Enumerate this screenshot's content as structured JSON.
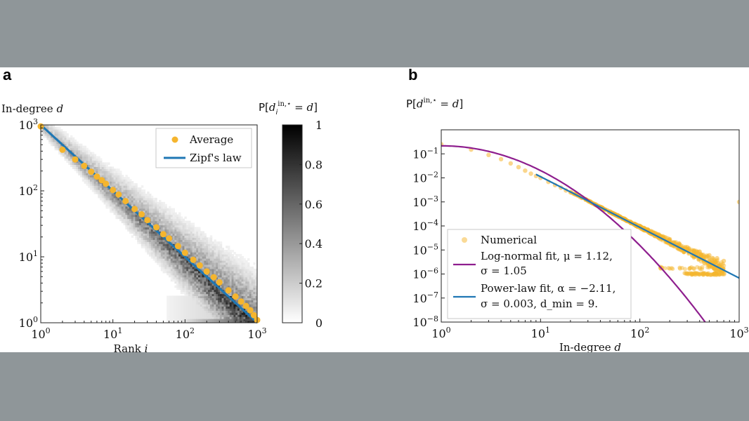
{
  "chart_data": [
    {
      "panel": "a",
      "type": "heatmap",
      "ylabel_text": "In-degree",
      "ylabel_var": "d",
      "xlabel_text": "Rank",
      "xlabel_var": "i",
      "xscale": "log",
      "yscale": "log",
      "xlim": [
        1,
        1000
      ],
      "ylim": [
        1,
        1000
      ],
      "x_ticks": [
        {
          "base": "10",
          "exp": "0"
        },
        {
          "base": "10",
          "exp": "1"
        },
        {
          "base": "10",
          "exp": "2"
        },
        {
          "base": "10",
          "exp": "3"
        }
      ],
      "y_ticks": [
        {
          "base": "10",
          "exp": "0"
        },
        {
          "base": "10",
          "exp": "1"
        },
        {
          "base": "10",
          "exp": "2"
        },
        {
          "base": "10",
          "exp": "3"
        }
      ],
      "colorbar": {
        "label": "P[d_i^{in,*} = d]",
        "ticks": [
          "0",
          "0.2",
          "0.4",
          "0.6",
          "0.8",
          "1"
        ],
        "range": [
          0,
          1
        ]
      },
      "legend_position": "top-right",
      "series": [
        {
          "name": "Average",
          "marker": "circle",
          "color": "#f5b52e",
          "x": [
            1,
            2,
            3,
            4,
            5,
            6,
            7,
            8,
            10,
            12,
            15,
            20,
            25,
            30,
            40,
            50,
            60,
            80,
            100,
            130,
            160,
            200,
            250,
            300,
            400,
            500,
            600,
            700,
            800,
            900,
            1000
          ],
          "y": [
            950,
            420,
            300,
            240,
            195,
            165,
            145,
            128,
            103,
            88,
            70,
            53,
            44,
            36,
            28,
            22,
            19,
            14.5,
            11.5,
            9,
            7.4,
            6,
            4.9,
            4.1,
            3.1,
            2.5,
            2.1,
            1.8,
            1.55,
            1.3,
            1.1
          ]
        },
        {
          "name": "Zipf's law",
          "type": "line",
          "color": "#1f77b4",
          "x": [
            1,
            1000
          ],
          "y": [
            1000,
            1
          ]
        }
      ]
    },
    {
      "panel": "b",
      "type": "scatter",
      "ylabel": "P[d^{in,*} = d]",
      "xlabel": "In-degree d",
      "xlabel_text": "In-degree",
      "xlabel_var": "d",
      "xscale": "log",
      "yscale": "log",
      "xlim": [
        1,
        1000
      ],
      "ylim": [
        1e-08,
        1
      ],
      "x_ticks": [
        {
          "base": "10",
          "exp": "0"
        },
        {
          "base": "10",
          "exp": "1"
        },
        {
          "base": "10",
          "exp": "2"
        },
        {
          "base": "10",
          "exp": "3"
        }
      ],
      "y_ticks": [
        {
          "base": "10",
          "exp": "−8"
        },
        {
          "base": "10",
          "exp": "−7"
        },
        {
          "base": "10",
          "exp": "−6"
        },
        {
          "base": "10",
          "exp": "−5"
        },
        {
          "base": "10",
          "exp": "−4"
        },
        {
          "base": "10",
          "exp": "−3"
        },
        {
          "base": "10",
          "exp": "−2"
        },
        {
          "base": "10",
          "exp": "−1"
        }
      ],
      "legend_position": "bottom-left",
      "series": [
        {
          "name": "Numerical",
          "marker": "circle",
          "color": "#f5b52e",
          "x": [
            1,
            2,
            3,
            4,
            5,
            6,
            7,
            8,
            9,
            10,
            12,
            14,
            16,
            18,
            20,
            25,
            30,
            35,
            40,
            50,
            60,
            70,
            80,
            100,
            120,
            150,
            200,
            250,
            300,
            400,
            500,
            600,
            700,
            1000
          ],
          "y": [
            0.25,
            0.15,
            0.09,
            0.06,
            0.04,
            0.028,
            0.02,
            0.015,
            0.012,
            0.01,
            0.0068,
            0.005,
            0.0039,
            0.003,
            0.0025,
            0.0016,
            0.0011,
            0.0008,
            0.0006,
            0.0004,
            0.00028,
            0.0002,
            0.00015,
            0.0001,
            7e-05,
            4.5e-05,
            2.8e-05,
            1.8e-05,
            1.3e-05,
            8.5e-06,
            6e-06,
            4.5e-06,
            3.5e-06,
            0.001
          ]
        },
        {
          "name": "Log-normal fit",
          "type": "line",
          "color": "#8e1e8e",
          "params": {
            "mu": 1.12,
            "sigma": 1.05
          },
          "legend_line1": "Log-normal fit, μ = 1.12,",
          "legend_line2": "σ = 1.05"
        },
        {
          "name": "Power-law fit",
          "type": "line",
          "color": "#1f77b4",
          "params": {
            "alpha": -2.11,
            "sigma": 0.003,
            "d_min": 9
          },
          "x": [
            9,
            1000
          ],
          "y": [
            0.014,
            6.8e-07
          ],
          "legend_line1": "Power-law fit, α = −2.11,",
          "legend_line2": "σ = 0.003, d_min = 9."
        }
      ]
    }
  ],
  "labels": {
    "panel_a": "a",
    "panel_b": "b"
  }
}
